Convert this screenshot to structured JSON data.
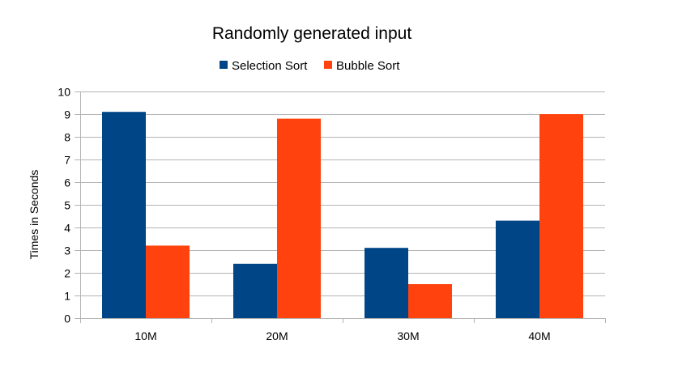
{
  "chart_data": {
    "type": "bar",
    "title": "Randomly generated input",
    "xlabel": "",
    "ylabel": "Times in Seconds",
    "categories": [
      "10M",
      "20M",
      "30M",
      "40M"
    ],
    "series": [
      {
        "name": "Selection Sort",
        "color": "#004586",
        "values": [
          9.1,
          2.4,
          3.1,
          4.3
        ]
      },
      {
        "name": "Bubble Sort",
        "color": "#ff420e",
        "values": [
          3.2,
          8.8,
          1.5,
          9.0
        ]
      }
    ],
    "ylim": [
      0,
      10
    ],
    "yticks": [
      "0",
      "1",
      "2",
      "3",
      "4",
      "5",
      "6",
      "7",
      "8",
      "9",
      "10"
    ],
    "grid": true,
    "legend_position": "top"
  }
}
